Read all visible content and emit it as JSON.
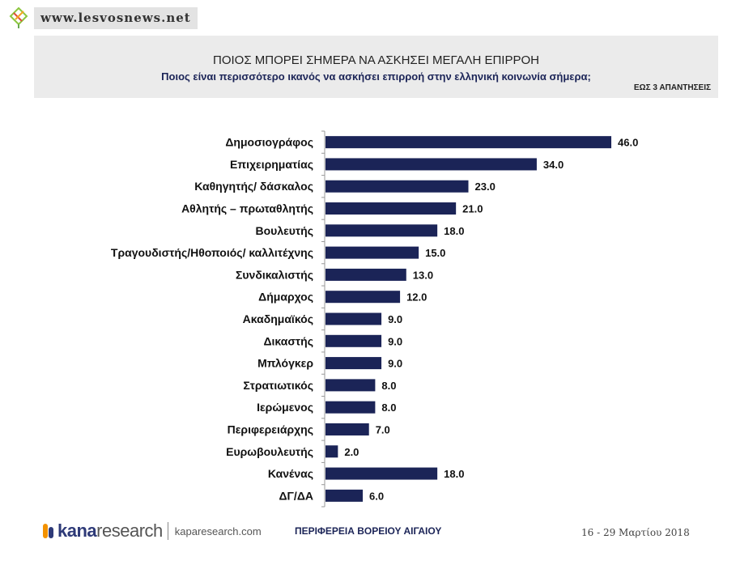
{
  "watermark": {
    "text": "www.lesvosnews.net",
    "icon": "leaf-logo-icon"
  },
  "header": {
    "title": "ΠΟΙΟΣ ΜΠΟΡΕΙ  ΣΗΜΕΡΑ ΝΑ ΑΣΚΗΣΕΙ ΜΕΓΑΛΗ ΕΠΙΡΡΟΗ",
    "subtitle": "Ποιος είναι περισσότερο ικανός να ασκήσει επιρροή στην ελληνική κοινωνία σήμερα;",
    "note": "ΕΩΣ 3 ΑΠΑΝΤΗΣΕΙΣ"
  },
  "chart_data": {
    "type": "bar",
    "orientation": "horizontal",
    "categories": [
      "Δημοσιογράφος",
      "Επιχειρηματίας",
      "Καθηγητής/ δάσκαλος",
      "Αθλητής – πρωταθλητής",
      "Βουλευτής",
      "Τραγουδιστής/Ηθοποιός/ καλλιτέχνης",
      "Συνδικαλιστής",
      "Δήμαρχος",
      "Ακαδημαϊκός",
      "Δικαστής",
      "Μπλόγκερ",
      "Στρατιωτικός",
      "Ιερώμενος",
      "Περιφερειάρχης",
      "Ευρωβουλευτής",
      "Κανένας",
      "ΔΓ/ΔΑ"
    ],
    "values": [
      46.0,
      34.0,
      23.0,
      21.0,
      18.0,
      15.0,
      13.0,
      12.0,
      9.0,
      9.0,
      9.0,
      8.0,
      8.0,
      7.0,
      2.0,
      18.0,
      6.0
    ],
    "value_labels": [
      "46.0",
      "34.0",
      "23.0",
      "21.0",
      "18.0",
      "15.0",
      "13.0",
      "12.0",
      "9.0",
      "9.0",
      "9.0",
      "8.0",
      "8.0",
      "7.0",
      "2.0",
      "18.0",
      "6.0"
    ],
    "bar_color": "#1b2457",
    "xlim": [
      0,
      46
    ],
    "grid": false
  },
  "footer": {
    "logo_brand": "kana",
    "logo_suffix": "research",
    "logo_url": "kaparesearch.com",
    "region": "ΠΕΡΙΦΕΡΕΙΑ ΒΟΡΕΙΟΥ ΑΙΓΑΙΟΥ",
    "date": "16 - 29 Μαρτίου 2018"
  }
}
